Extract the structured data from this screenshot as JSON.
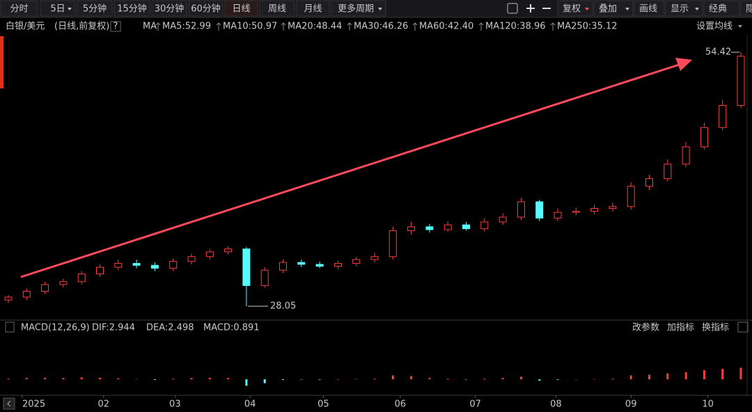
{
  "toolbar": {
    "left": [
      "分时",
      "5日",
      "5分钟",
      "15分钟",
      "30分钟",
      "60分钟",
      "日线",
      "周线",
      "月线",
      "更多周期"
    ],
    "active": "日线",
    "right": [
      "复权",
      "叠加",
      "画线",
      "显示",
      "经典",
      "隐"
    ]
  },
  "legend": {
    "symbol": "白银/美元",
    "mode": "(日线,前复权)",
    "help": "?",
    "ma": "MA",
    "ma_items": [
      {
        "label": "MA5:52.99",
        "color": "#ffffff"
      },
      {
        "label": "MA10:50.97",
        "color": "#f5e53a"
      },
      {
        "label": "MA20:48.44",
        "color": "#f03cf0"
      },
      {
        "label": "MA30:46.26",
        "color": "#3cdc3c"
      },
      {
        "label": "MA60:42.40",
        "color": "#d0d0d0"
      },
      {
        "label": "MA120:38.96",
        "color": "#2cc8f0"
      },
      {
        "label": "MA250:35.12",
        "color": "#e8e070"
      }
    ],
    "settings": "设置均线"
  },
  "indicator_bar": {
    "name": "MACD(12,26,9)",
    "items": [
      {
        "label": "DIF:2.944",
        "color": "#ffffff"
      },
      {
        "label": "DEA:2.498",
        "color": "#f5e53a"
      },
      {
        "label": "MACD:0.891",
        "color": "#f03cf0"
      }
    ],
    "actions": [
      "改参数",
      "加指标",
      "换指标"
    ]
  },
  "chart_data": [
    {
      "type": "candlestick",
      "up_color": "#ff3c3c",
      "down_color": "#54fcfc",
      "open": [
        28.7,
        29.0,
        29.6,
        30.3,
        30.6,
        31.4,
        32.1,
        32.5,
        32.3,
        32.0,
        32.7,
        33.2,
        33.7,
        34.0,
        30.2,
        31.8,
        32.6,
        32.4,
        32.2,
        32.5,
        32.9,
        33.2,
        35.9,
        36.3,
        36.0,
        36.5,
        36.1,
        36.8,
        37.3,
        38.9,
        37.2,
        37.8,
        37.9,
        38.2,
        38.4,
        40.5,
        41.3,
        42.8,
        44.6,
        46.6,
        48.9
      ],
      "high": [
        29.2,
        29.9,
        30.6,
        30.9,
        31.7,
        32.4,
        32.9,
        32.9,
        32.6,
        33.0,
        33.5,
        34.0,
        34.3,
        34.2,
        32.1,
        32.9,
        32.9,
        32.7,
        32.8,
        33.2,
        33.6,
        36.3,
        36.8,
        36.6,
        36.9,
        36.8,
        37.2,
        37.7,
        39.3,
        39.1,
        38.2,
        38.3,
        38.6,
        38.8,
        40.9,
        41.7,
        43.3,
        45.1,
        47.1,
        49.5,
        54.42
      ],
      "low": [
        28.4,
        28.7,
        29.3,
        30.0,
        30.3,
        31.1,
        31.8,
        32.0,
        31.7,
        31.7,
        32.4,
        32.9,
        33.4,
        28.05,
        30.0,
        31.5,
        32.1,
        32.0,
        31.9,
        32.2,
        32.6,
        32.9,
        35.5,
        35.7,
        35.8,
        35.9,
        35.8,
        36.5,
        37.0,
        36.9,
        36.9,
        37.5,
        37.6,
        37.9,
        38.1,
        40.1,
        41.0,
        42.5,
        44.3,
        46.3,
        48.6
      ],
      "close": [
        29.0,
        29.6,
        30.3,
        30.6,
        31.4,
        32.1,
        32.5,
        32.3,
        32.0,
        32.7,
        33.2,
        33.7,
        34.0,
        30.2,
        31.8,
        32.6,
        32.4,
        32.2,
        32.5,
        32.9,
        33.2,
        35.9,
        36.3,
        36.0,
        36.5,
        36.1,
        36.8,
        37.3,
        38.9,
        37.2,
        37.8,
        37.9,
        38.2,
        38.4,
        40.5,
        41.3,
        42.8,
        44.6,
        46.6,
        48.9,
        54.0
      ],
      "ylim": [
        26.97,
        56.23
      ],
      "high_marker": 54.42,
      "low_marker": 28.05,
      "xticks": [
        {
          "value": 0,
          "label": "2025"
        },
        {
          "value": 5.2,
          "label": "02"
        },
        {
          "value": 9.1,
          "label": "03"
        },
        {
          "value": 13.2,
          "label": "04"
        },
        {
          "value": 17.2,
          "label": "05"
        },
        {
          "value": 21.4,
          "label": "06"
        },
        {
          "value": 25.5,
          "label": "07"
        },
        {
          "value": 29.9,
          "label": "08"
        },
        {
          "value": 34,
          "label": "09"
        },
        {
          "value": 38.2,
          "label": "10"
        }
      ]
    },
    {
      "type": "bar",
      "pos_color": "#ff3c3c",
      "neg_color": "#54fcfc",
      "ylim": [
        -1.07,
        3.48
      ],
      "values": [
        0.05,
        0.1,
        0.12,
        0.1,
        0.15,
        0.12,
        0.08,
        0.02,
        -0.05,
        0.05,
        0.1,
        0.12,
        0.1,
        -0.5,
        -0.3,
        -0.05,
        -0.02,
        -0.04,
        0.0,
        0.03,
        0.05,
        0.3,
        0.25,
        0.1,
        0.05,
        -0.02,
        0.05,
        0.1,
        0.2,
        -0.1,
        -0.05,
        0.0,
        0.02,
        0.05,
        0.3,
        0.35,
        0.45,
        0.55,
        0.7,
        0.8,
        0.891
      ]
    }
  ]
}
